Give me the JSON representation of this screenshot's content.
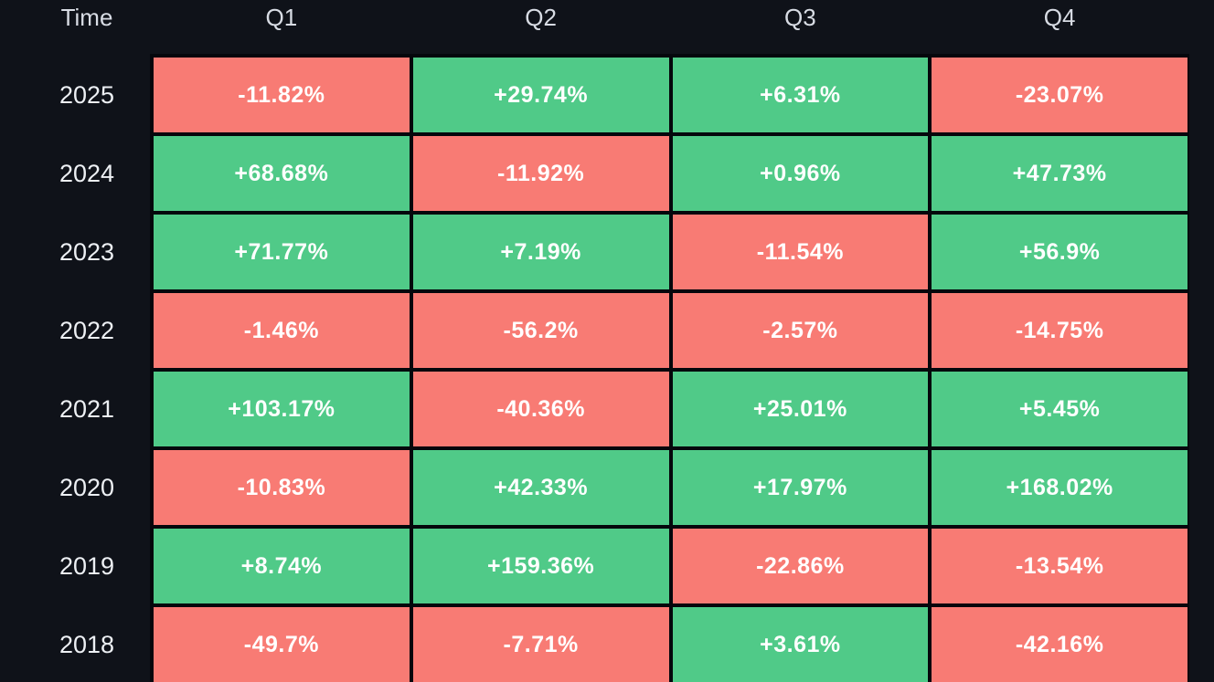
{
  "colors": {
    "background": "#0f1219",
    "grid": "#05070c",
    "positive": "#50ca88",
    "negative": "#f87b74",
    "header_text": "#d8dce4",
    "year_text": "#edf0f4",
    "cell_text": "#ffffff"
  },
  "table": {
    "header": {
      "time_label": "Time",
      "quarters": [
        "Q1",
        "Q2",
        "Q3",
        "Q4"
      ]
    },
    "rows": [
      {
        "year": "2025",
        "cells": [
          {
            "value": "-11.82%",
            "direction": "down"
          },
          {
            "value": "+29.74%",
            "direction": "up"
          },
          {
            "value": "+6.31%",
            "direction": "up"
          },
          {
            "value": "-23.07%",
            "direction": "down"
          }
        ]
      },
      {
        "year": "2024",
        "cells": [
          {
            "value": "+68.68%",
            "direction": "up"
          },
          {
            "value": "-11.92%",
            "direction": "down"
          },
          {
            "value": "+0.96%",
            "direction": "up"
          },
          {
            "value": "+47.73%",
            "direction": "up"
          }
        ]
      },
      {
        "year": "2023",
        "cells": [
          {
            "value": "+71.77%",
            "direction": "up"
          },
          {
            "value": "+7.19%",
            "direction": "up"
          },
          {
            "value": "-11.54%",
            "direction": "down"
          },
          {
            "value": "+56.9%",
            "direction": "up"
          }
        ]
      },
      {
        "year": "2022",
        "cells": [
          {
            "value": "-1.46%",
            "direction": "down"
          },
          {
            "value": "-56.2%",
            "direction": "down"
          },
          {
            "value": "-2.57%",
            "direction": "down"
          },
          {
            "value": "-14.75%",
            "direction": "down"
          }
        ]
      },
      {
        "year": "2021",
        "cells": [
          {
            "value": "+103.17%",
            "direction": "up"
          },
          {
            "value": "-40.36%",
            "direction": "down"
          },
          {
            "value": "+25.01%",
            "direction": "up"
          },
          {
            "value": "+5.45%",
            "direction": "up"
          }
        ]
      },
      {
        "year": "2020",
        "cells": [
          {
            "value": "-10.83%",
            "direction": "down"
          },
          {
            "value": "+42.33%",
            "direction": "up"
          },
          {
            "value": "+17.97%",
            "direction": "up"
          },
          {
            "value": "+168.02%",
            "direction": "up"
          }
        ]
      },
      {
        "year": "2019",
        "cells": [
          {
            "value": "+8.74%",
            "direction": "up"
          },
          {
            "value": "+159.36%",
            "direction": "up"
          },
          {
            "value": "-22.86%",
            "direction": "down"
          },
          {
            "value": "-13.54%",
            "direction": "down"
          }
        ]
      },
      {
        "year": "2018",
        "cells": [
          {
            "value": "-49.7%",
            "direction": "down"
          },
          {
            "value": "-7.71%",
            "direction": "down"
          },
          {
            "value": "+3.61%",
            "direction": "up"
          },
          {
            "value": "-42.16%",
            "direction": "down"
          }
        ]
      }
    ]
  },
  "chart_data": {
    "type": "heatmap",
    "corner_label": "Time",
    "x_labels": [
      "Q1",
      "Q2",
      "Q3",
      "Q4"
    ],
    "y_labels": [
      "2025",
      "2024",
      "2023",
      "2022",
      "2021",
      "2020",
      "2019",
      "2018"
    ],
    "values_percent": [
      [
        -11.82,
        29.74,
        6.31,
        -23.07
      ],
      [
        68.68,
        -11.92,
        0.96,
        47.73
      ],
      [
        71.77,
        7.19,
        -11.54,
        56.9
      ],
      [
        -1.46,
        -56.2,
        -2.57,
        -14.75
      ],
      [
        103.17,
        -40.36,
        25.01,
        5.45
      ],
      [
        -10.83,
        42.33,
        17.97,
        168.02
      ],
      [
        8.74,
        159.36,
        -22.86,
        -13.54
      ],
      [
        -49.7,
        -7.71,
        3.61,
        -42.16
      ]
    ],
    "color_coding": {
      "positive": "#50ca88",
      "negative": "#f87b74"
    },
    "legend_position": "none",
    "grid": "black gaps between cells"
  }
}
